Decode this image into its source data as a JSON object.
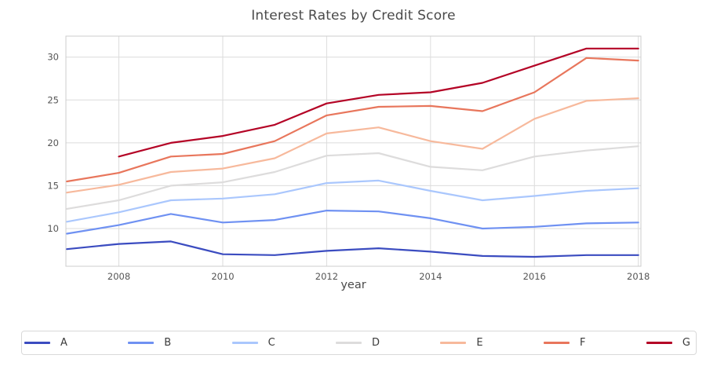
{
  "chart_data": {
    "type": "line",
    "title": "Interest Rates by Credit Score",
    "xlabel": "year",
    "ylabel": "",
    "x": [
      2007,
      2008,
      2009,
      2010,
      2011,
      2012,
      2013,
      2014,
      2015,
      2016,
      2017,
      2018
    ],
    "xticks": [
      "2008",
      "2010",
      "2012",
      "2014",
      "2016",
      "2018"
    ],
    "xtick_values": [
      2008,
      2010,
      2012,
      2014,
      2016,
      2018
    ],
    "yticks": [
      "10",
      "15",
      "20",
      "25",
      "30"
    ],
    "ytick_values": [
      10,
      15,
      20,
      25,
      30
    ],
    "xlim": [
      2006.98,
      2018.05
    ],
    "ylim": [
      5.6,
      32.45
    ],
    "grid": true,
    "legend_position": "bottom-strip",
    "series": [
      {
        "name": "A",
        "color": "#3b4cc0",
        "values": [
          7.6,
          8.2,
          8.5,
          7.0,
          6.9,
          7.4,
          7.7,
          7.3,
          6.8,
          6.7,
          6.9,
          6.9
        ]
      },
      {
        "name": "B",
        "color": "#6f91f2",
        "values": [
          9.4,
          10.4,
          11.7,
          10.7,
          11.0,
          12.1,
          12.0,
          11.2,
          10.0,
          10.2,
          10.6,
          10.7
        ]
      },
      {
        "name": "C",
        "color": "#aac7fd",
        "values": [
          10.8,
          11.9,
          13.3,
          13.5,
          14.0,
          15.3,
          15.6,
          14.4,
          13.3,
          13.8,
          14.4,
          14.7
        ]
      },
      {
        "name": "D",
        "color": "#dddcdc",
        "values": [
          12.3,
          13.3,
          15.0,
          15.4,
          16.6,
          18.5,
          18.8,
          17.2,
          16.8,
          18.4,
          19.1,
          19.6
        ]
      },
      {
        "name": "E",
        "color": "#f7b99c",
        "values": [
          14.2,
          15.1,
          16.6,
          17.0,
          18.2,
          21.1,
          21.8,
          20.2,
          19.3,
          22.8,
          24.9,
          25.2
        ]
      },
      {
        "name": "F",
        "color": "#e8765c",
        "values": [
          15.5,
          16.5,
          18.4,
          18.7,
          20.2,
          23.2,
          24.2,
          24.3,
          23.7,
          25.9,
          29.9,
          29.6
        ]
      },
      {
        "name": "G",
        "color": "#b40426",
        "values": [
          null,
          18.4,
          20.0,
          20.8,
          22.1,
          24.6,
          25.6,
          25.9,
          27.0,
          29.0,
          31.0,
          31.0
        ]
      }
    ],
    "colors": {
      "grid": "#dcdcdc",
      "spine": "#cccccc",
      "tick_label": "#555555",
      "title": "#4a4a4a",
      "axis_label": "#4a4a4a",
      "background": "#ffffff"
    }
  }
}
